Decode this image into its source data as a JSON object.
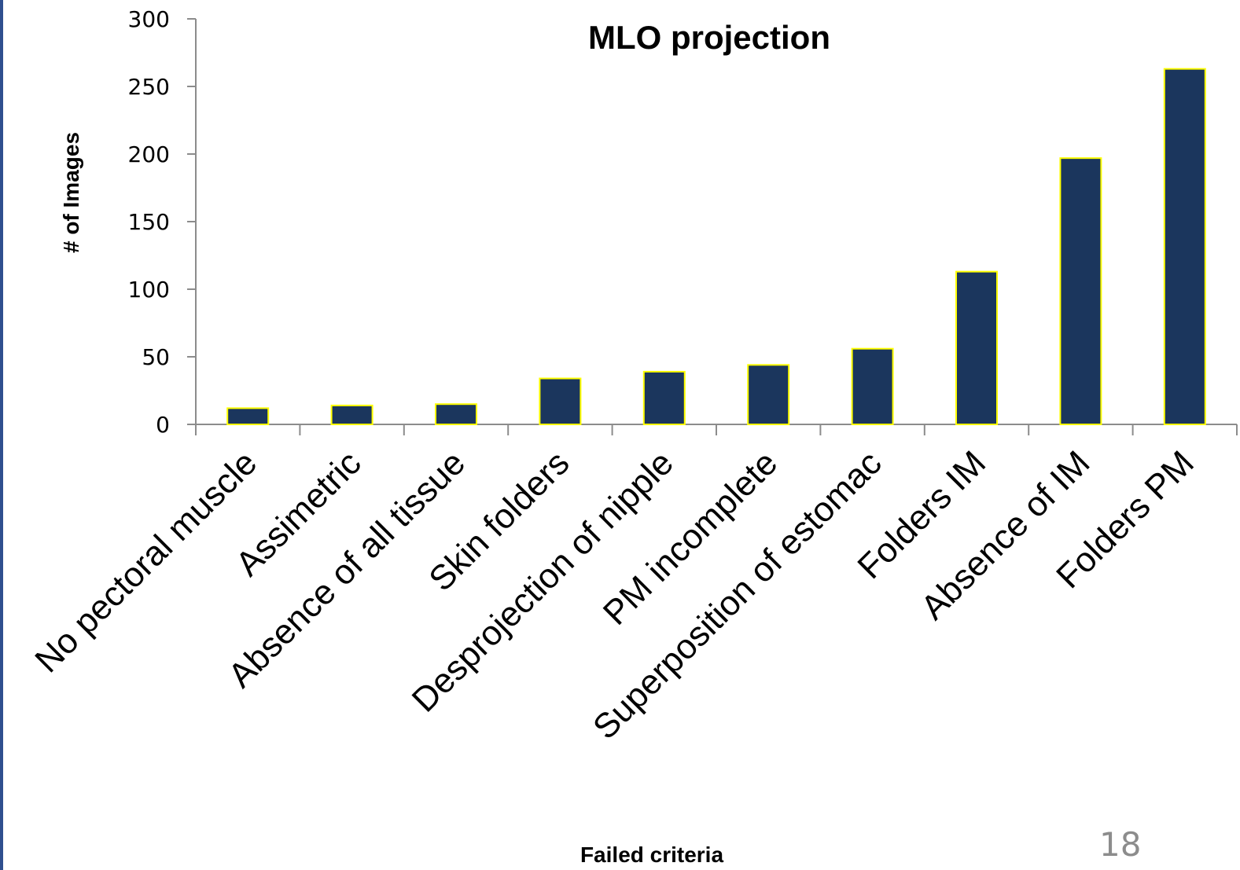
{
  "slide": {
    "page_number": "18",
    "border_color": "#2f4f8f"
  },
  "chart_data": {
    "type": "bar",
    "title": "MLO projection",
    "xlabel": "Failed criteria",
    "ylabel": "# of Images",
    "categories": [
      "No pectoral muscle",
      "Assimetric",
      "Absence of all tissue",
      "Skin folders",
      "Desprojection of nipple",
      "PM incomplete",
      "Superposition of estomac",
      "Folders IM",
      "Absence of IM",
      "Folders PM"
    ],
    "values": [
      12,
      14,
      15,
      34,
      39,
      44,
      56,
      113,
      197,
      263
    ],
    "ylim": [
      0,
      300
    ],
    "yticks": [
      0,
      50,
      100,
      150,
      200,
      250,
      300
    ],
    "grid": false,
    "legend": "none",
    "colors": {
      "bar_fill": "#1b365d",
      "bar_outline": "#ffff00",
      "axis": "#8c8c8c",
      "text": "#000000"
    }
  }
}
